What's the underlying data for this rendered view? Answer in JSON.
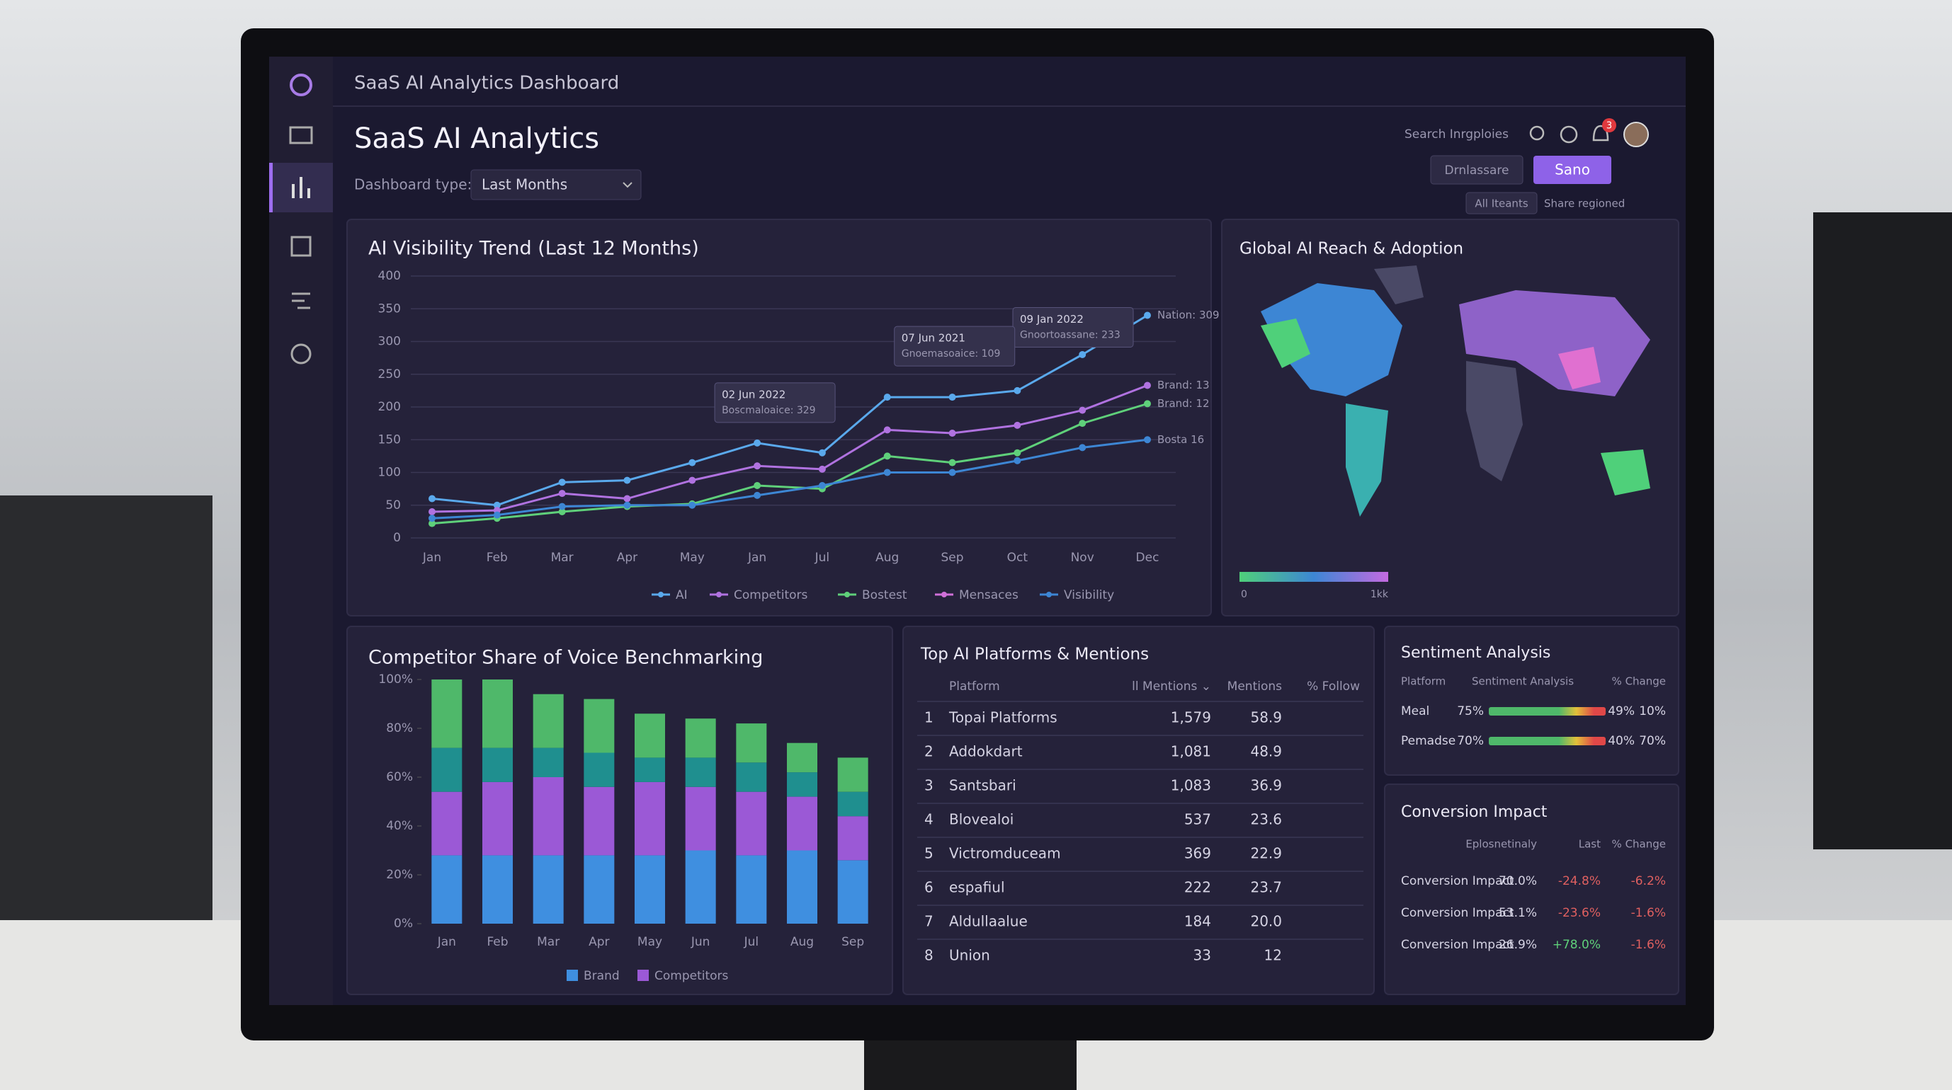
{
  "header": {
    "app_title": "SaaS AI Analytics Dashboard",
    "page_title": "SaaS AI Analytics",
    "search": "Search Inrgploies",
    "notifications": "3"
  },
  "toolbar": {
    "label": "Dashboard type:",
    "dropdown": "Last Months",
    "buttons": [
      "Drnlassare",
      "Sano"
    ],
    "filters": [
      "All Iteants",
      "Share regioned"
    ]
  },
  "line_chart": {
    "type": "line",
    "title": "AI Visibility Trend (Last 12 Months)",
    "categories": [
      "Jan",
      "Feb",
      "Mar",
      "Apr",
      "May",
      "Jan",
      "Jul",
      "Aug",
      "Sep",
      "Oct",
      "Nov",
      "Dec"
    ],
    "ylim": [
      0,
      400
    ],
    "yticks": [
      0,
      50,
      100,
      150,
      200,
      250,
      300,
      350,
      400
    ],
    "grid": true,
    "series": [
      {
        "name": "AI",
        "color": "#5aa9ec",
        "values": [
          60,
          50,
          85,
          88,
          115,
          145,
          130,
          215,
          215,
          225,
          280,
          340
        ],
        "end_label": "Nation: 309"
      },
      {
        "name": "Competitors",
        "color": "#b072e0",
        "values": [
          40,
          42,
          68,
          60,
          88,
          110,
          105,
          165,
          160,
          172,
          195,
          233
        ],
        "end_label": "Brand: 13"
      },
      {
        "name": "Bostest",
        "color": "#5fd07a",
        "values": [
          22,
          30,
          40,
          48,
          52,
          80,
          75,
          125,
          115,
          130,
          175,
          205
        ],
        "end_label": "Brand: 12"
      },
      {
        "name": "Visibility",
        "color": "#3d86d4",
        "values": [
          30,
          35,
          48,
          50,
          50,
          65,
          80,
          100,
          100,
          118,
          138,
          150
        ],
        "end_label": "Bosta 16"
      }
    ],
    "legend_extra": {
      "name": "Mensaces",
      "color": "#d070d8"
    },
    "tooltips": [
      {
        "date": "09 Jan 2022",
        "text": "Gnoortoassane: 233"
      },
      {
        "date": "07 Jun 2021",
        "text": "Gnoemasoaice: 109"
      },
      {
        "date": "02 Jun 2022",
        "text": "Boscmaloaice: 329"
      }
    ]
  },
  "map": {
    "title": "Global AI Reach & Adoption",
    "scale": [
      "0",
      "1kk"
    ]
  },
  "bar_chart": {
    "type": "bar",
    "stacked": true,
    "title": "Competitor Share of Voice Benchmarking",
    "categories": [
      "Jan",
      "Feb",
      "Mar",
      "Apr",
      "May",
      "Jun",
      "Jul",
      "Aug",
      "Sep"
    ],
    "ylim": [
      0,
      100
    ],
    "yticks": [
      {
        "value": 0,
        "label": "0%"
      },
      {
        "value": 20,
        "label": "20%"
      },
      {
        "value": 40,
        "label": "40%"
      },
      {
        "value": 60,
        "label": "60%"
      },
      {
        "value": 80,
        "label": "80%"
      },
      {
        "value": 100,
        "label": "100%"
      }
    ],
    "series": [
      {
        "name": "Brand",
        "color": "#3f8fe0",
        "values": [
          28,
          28,
          28,
          28,
          28,
          30,
          28,
          30,
          26
        ]
      },
      {
        "name": "Competitors",
        "color": "#9b59d6",
        "values": [
          26,
          30,
          32,
          28,
          30,
          26,
          26,
          22,
          18
        ]
      },
      {
        "color": "#1f8f8f",
        "values": [
          18,
          14,
          12,
          14,
          10,
          12,
          12,
          10,
          10
        ]
      },
      {
        "color": "#4fb86a",
        "values": [
          28,
          28,
          22,
          22,
          18,
          16,
          16,
          12,
          14
        ]
      }
    ]
  },
  "platforms": {
    "title": "Top AI Platforms & Mentions",
    "columns": [
      "Platform",
      "ll Mentions ⌄",
      "Mentions",
      "% Follow"
    ],
    "rows": [
      [
        "1",
        "Topai Platforms",
        "1,579",
        "58.9"
      ],
      [
        "2",
        "Addokdart",
        "1,081",
        "48.9"
      ],
      [
        "3",
        "Santsbari",
        "1,083",
        "36.9"
      ],
      [
        "4",
        "Blovealoi",
        "537",
        "23.6"
      ],
      [
        "5",
        "Victromduceam",
        "369",
        "22.9"
      ],
      [
        "6",
        "espafiul",
        "222",
        "23.7"
      ],
      [
        "7",
        "Aldullaalue",
        "184",
        "20.0"
      ],
      [
        "8",
        "Union",
        "33",
        "12"
      ]
    ]
  },
  "sentiment": {
    "title": "Sentiment Analysis",
    "columns": [
      "Platform",
      "Sentiment Analysis",
      "% Change"
    ],
    "rows": [
      [
        "Meal",
        "75%",
        "49%",
        "10%"
      ],
      [
        "Pemadse",
        "70%",
        "40%",
        "70%"
      ]
    ]
  },
  "conversion": {
    "title": "Conversion Impact",
    "columns": [
      "Eplosnetinaly",
      "Last",
      "% Change"
    ],
    "rows": [
      [
        "Conversion Impact",
        "70.0%",
        "-24.8%",
        "-6.2%"
      ],
      [
        "Conversion Impact",
        "53.1%",
        "-23.6%",
        "-1.6%"
      ],
      [
        "Conversion Impact",
        "26.9%",
        "+78.0%",
        "-1.6%"
      ]
    ]
  }
}
